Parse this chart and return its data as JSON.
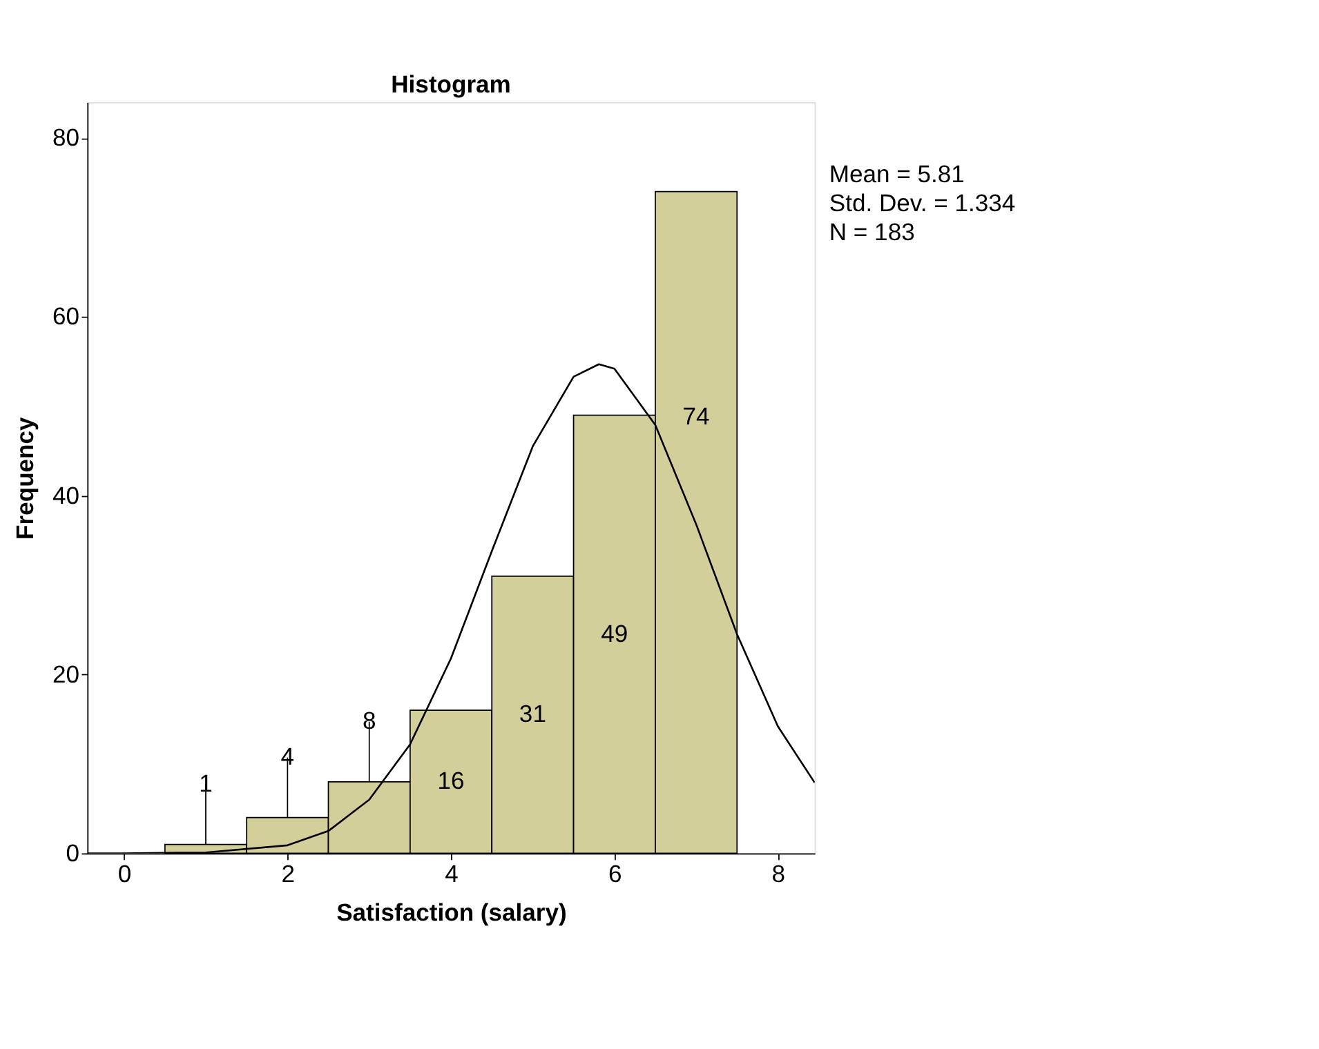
{
  "chart_data": {
    "type": "histogram",
    "title": "Histogram",
    "xlabel": "Satisfaction (salary)",
    "ylabel": "Frequency",
    "bins": [
      0.5,
      1.5,
      2.5,
      3.5,
      4.5,
      5.5,
      6.5,
      7.5
    ],
    "values": [
      1,
      4,
      8,
      16,
      31,
      49,
      74
    ],
    "color": "#d3cf9a",
    "value_labels": [
      "1",
      "4",
      "8",
      "16",
      "31",
      "49",
      "74"
    ],
    "series": [
      {
        "type": "line",
        "color": "#000000",
        "x": [
          -0.45,
          0,
          1,
          2,
          2.5,
          3,
          3.5,
          4,
          4.5,
          5,
          5.5,
          5.81,
          6,
          6.5,
          7,
          7.5,
          8,
          8.45
        ],
        "values": [
          0,
          0,
          0.1,
          0.9,
          2.5,
          6,
          12.2,
          21.8,
          33.8,
          45.5,
          53.3,
          54.7,
          54.2,
          47.9,
          36.8,
          24.5,
          14.2,
          7.9
        ]
      }
    ],
    "xlim": [
      -0.45,
      8.45
    ],
    "ylim": [
      0,
      84
    ],
    "xticks": [
      0,
      2,
      4,
      6,
      8
    ],
    "yticks": [
      0,
      20,
      40,
      60,
      80
    ],
    "grid": false,
    "annotations": [
      "Mean = 5.81",
      "Std. Dev. = 1.334",
      "N = 183"
    ]
  }
}
